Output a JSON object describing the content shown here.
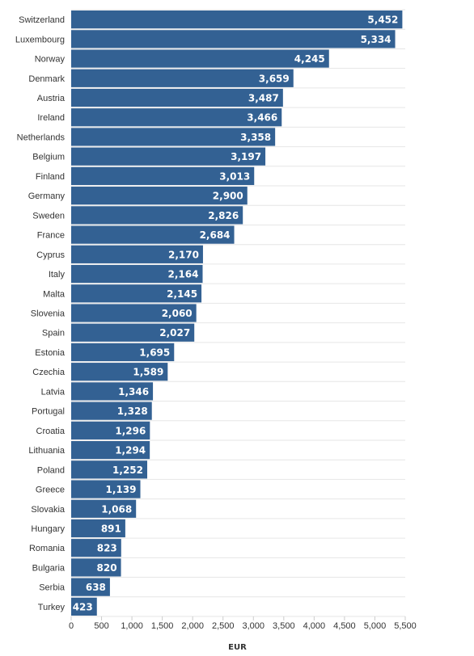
{
  "chart_data": {
    "type": "bar",
    "orientation": "horizontal",
    "title": "",
    "xlabel": "EUR",
    "ylabel": "",
    "xlim": [
      0,
      5500
    ],
    "grid": true,
    "bar_color": "#336193",
    "x_ticks": [
      "0",
      "500",
      "1,000",
      "1,500",
      "2,000",
      "2,500",
      "3,000",
      "3,500",
      "4,000",
      "4,500",
      "5,000",
      "5,500"
    ],
    "categories": [
      "Switzerland",
      "Luxembourg",
      "Norway",
      "Denmark",
      "Austria",
      "Ireland",
      "Netherlands",
      "Belgium",
      "Finland",
      "Germany",
      "Sweden",
      "France",
      "Cyprus",
      "Italy",
      "Malta",
      "Slovenia",
      "Spain",
      "Estonia",
      "Czechia",
      "Latvia",
      "Portugal",
      "Croatia",
      "Lithuania",
      "Poland",
      "Greece",
      "Slovakia",
      "Hungary",
      "Romania",
      "Bulgaria",
      "Serbia",
      "Turkey"
    ],
    "values": [
      5452,
      5334,
      4245,
      3659,
      3487,
      3466,
      3358,
      3197,
      3013,
      2900,
      2826,
      2684,
      2170,
      2164,
      2145,
      2060,
      2027,
      1695,
      1589,
      1346,
      1328,
      1296,
      1294,
      1252,
      1139,
      1068,
      891,
      823,
      820,
      638,
      423
    ],
    "value_labels": [
      "5,452",
      "5,334",
      "4,245",
      "3,659",
      "3,487",
      "3,466",
      "3,358",
      "3,197",
      "3,013",
      "2,900",
      "2,826",
      "2,684",
      "2,170",
      "2,164",
      "2,145",
      "2,060",
      "2,027",
      "1,695",
      "1,589",
      "1,346",
      "1,328",
      "1,296",
      "1,294",
      "1,252",
      "1,139",
      "1,068",
      "891",
      "823",
      "820",
      "638",
      "423"
    ]
  }
}
